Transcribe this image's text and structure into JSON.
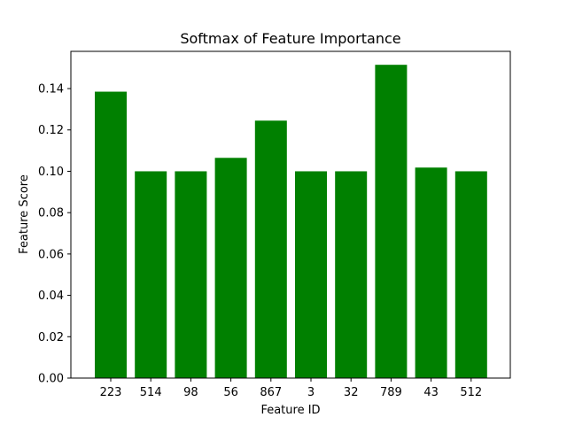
{
  "chart_data": {
    "type": "bar",
    "title": "Softmax of Feature Importance",
    "xlabel": "Feature ID",
    "ylabel": "Feature Score",
    "categories": [
      "223",
      "514",
      "98",
      "56",
      "867",
      "3",
      "32",
      "789",
      "43",
      "512"
    ],
    "values": [
      0.1385,
      0.1,
      0.1,
      0.1065,
      0.1245,
      0.1,
      0.1,
      0.1515,
      0.1018,
      0.1
    ],
    "ylim": [
      0,
      0.158
    ],
    "yticks": [
      0.0,
      0.02,
      0.04,
      0.06,
      0.08,
      0.1,
      0.12,
      0.14
    ],
    "ytick_labels": [
      "0.00",
      "0.02",
      "0.04",
      "0.06",
      "0.08",
      "0.10",
      "0.12",
      "0.14"
    ],
    "bar_color": "#008000",
    "grid": false,
    "legend": "none"
  }
}
